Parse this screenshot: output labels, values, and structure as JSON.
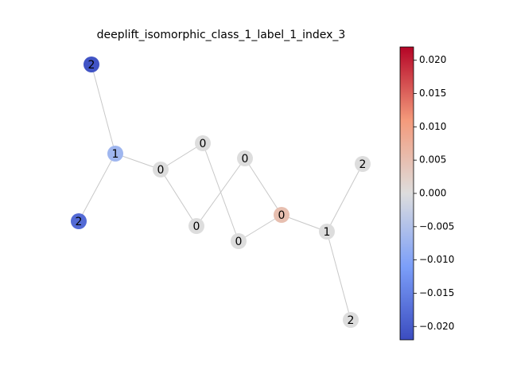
{
  "chart_data": {
    "type": "network",
    "title": "deeplift_isomorphic_class_1_label_1_index_3",
    "colormap": "coolwarm",
    "nodes": [
      {
        "label": "2",
        "value": -0.021
      },
      {
        "label": "1",
        "value": -0.007
      },
      {
        "label": "2",
        "value": -0.018
      },
      {
        "label": "0",
        "value": 0
      },
      {
        "label": "0",
        "value": 0
      },
      {
        "label": "0",
        "value": 0
      },
      {
        "label": "0",
        "value": 0
      },
      {
        "label": "0",
        "value": 0
      },
      {
        "label": "0",
        "value": 0.005
      },
      {
        "label": "1",
        "value": 0
      },
      {
        "label": "2",
        "value": 0
      },
      {
        "label": "2",
        "value": 0
      }
    ],
    "clim": [
      -0.022,
      0.022
    ],
    "cticks": [
      {
        "value": 0.02,
        "label": "0.020"
      },
      {
        "value": 0.015,
        "label": "0.015"
      },
      {
        "value": 0.01,
        "label": "0.010"
      },
      {
        "value": 0.005,
        "label": "0.005"
      },
      {
        "value": 0,
        "label": "0.000"
      },
      {
        "value": -0.005,
        "label": "−0.005"
      },
      {
        "value": -0.01,
        "label": "−0.010"
      },
      {
        "value": -0.015,
        "label": "−0.015"
      },
      {
        "value": -0.02,
        "label": "−0.020"
      }
    ]
  }
}
